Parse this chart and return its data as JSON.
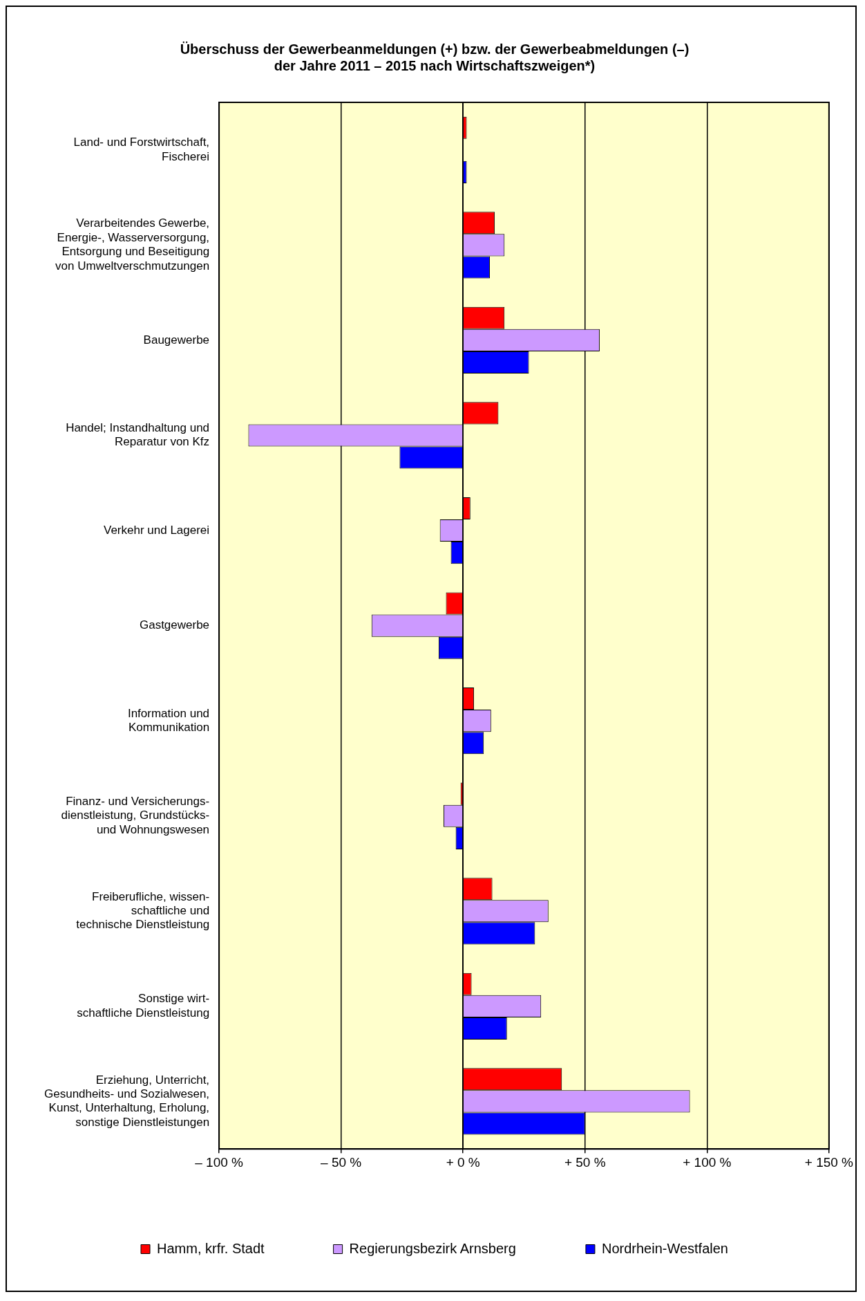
{
  "chart_data": {
    "type": "bar",
    "orientation": "horizontal",
    "title": "Überschuss der Gewerbeanmeldungen (+) bzw. der Gewerbeabmeldungen (–)\nder Jahre 2011 – 2015 nach Wirtschaftszweigen*)",
    "categories": [
      "Land- und Forstwirtschaft,\nFischerei",
      "Verarbeitendes Gewerbe,\nEnergie-, Wasserversorgung,\nEntsorgung und Beseitigung\nvon Umweltverschmutzungen",
      "Baugewerbe",
      "Handel; Instandhaltung und\nReparatur von Kfz",
      "Verkehr und Lagerei",
      "Gastgewerbe",
      "Information und\nKommunikation",
      "Finanz- und Versicherungs-\ndienstleistung, Grundstücks-\nund Wohnungswesen",
      "Freiberufliche, wissen-\nschaftliche und\ntechnische Dienstleistung",
      "Sonstige wirt-\nschaftliche Dienstleistung",
      "Erziehung, Unterricht,\nGesundheits- und Sozialwesen,\nKunst, Unterhaltung, Erholung,\nsonstige Dienstleistungen"
    ],
    "series": [
      {
        "name": "Hamm, krfr. Stadt",
        "color": "#ff0000",
        "values": [
          1.5,
          13,
          17,
          14.5,
          3,
          -7,
          4.5,
          -1,
          12,
          3.5,
          40.5
        ]
      },
      {
        "name": "Regierungsbezirk Arnsberg",
        "color": "#cc99ff",
        "values": [
          0,
          17,
          56,
          -88,
          -9.5,
          -37.5,
          11.5,
          -8,
          35,
          32,
          93
        ]
      },
      {
        "name": "Nordrhein-Westfalen",
        "color": "#0000ff",
        "values": [
          1.5,
          11,
          27,
          -26,
          -5,
          -10,
          8.5,
          -3,
          29.5,
          18,
          50
        ]
      }
    ],
    "xlim": [
      -100,
      150
    ],
    "xticks": [
      {
        "value": -100,
        "label": "– 100 %"
      },
      {
        "value": -50,
        "label": "– 50 %"
      },
      {
        "value": 0,
        "label": "+ 0 %"
      },
      {
        "value": 50,
        "label": "+ 50 %"
      },
      {
        "value": 100,
        "label": "+ 100 %"
      },
      {
        "value": 150,
        "label": "+ 150 %"
      }
    ],
    "grid": "x",
    "legend": "bottom"
  }
}
